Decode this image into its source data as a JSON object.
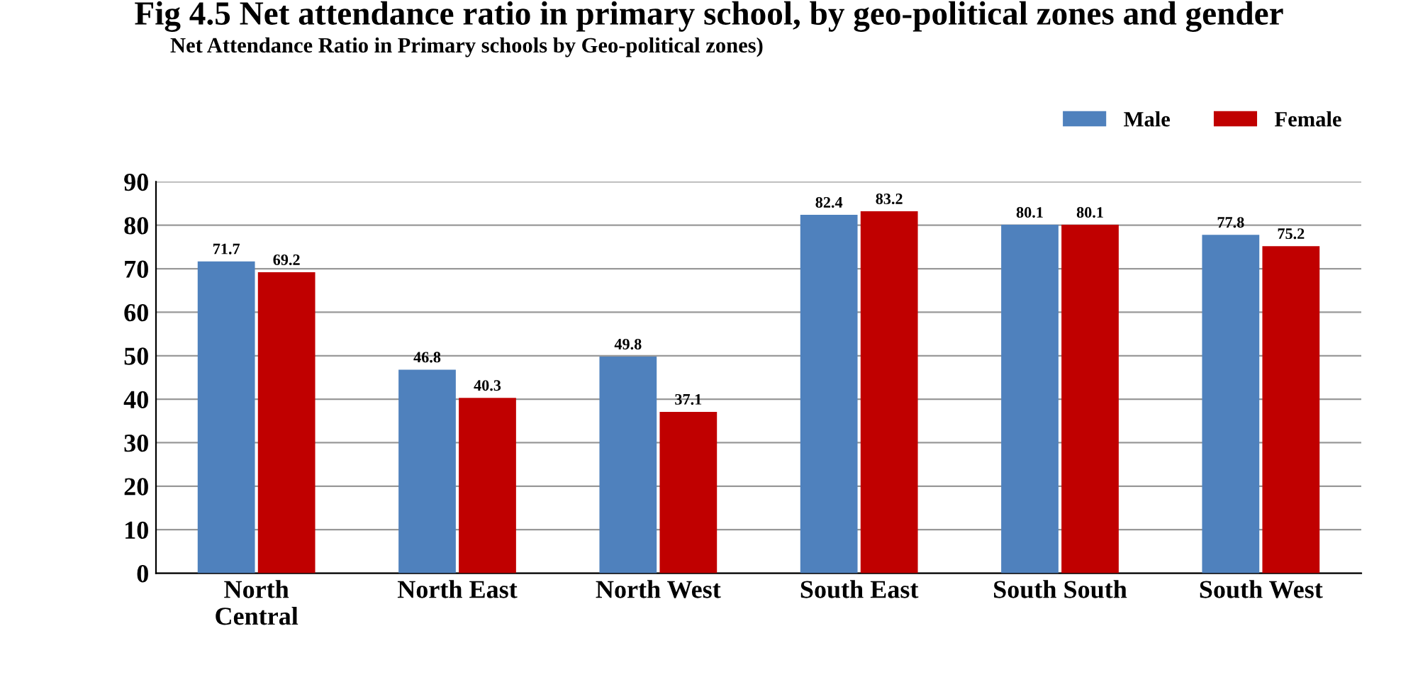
{
  "chart_data": {
    "type": "bar",
    "title": "Fig 4.5 Net attendance ratio in primary school, by geo-political zones and gender",
    "subtitle": "Net Attendance Ratio in Primary schools by Geo-political zones)",
    "categories": [
      "North\nCentral",
      "North East",
      "North West",
      "South East",
      "South South",
      "South West"
    ],
    "series": [
      {
        "name": "Male",
        "color": "#4f81bd",
        "values": [
          71.7,
          46.8,
          49.8,
          82.4,
          80.1,
          77.8
        ]
      },
      {
        "name": "Female",
        "color": "#c00000",
        "values": [
          69.2,
          40.3,
          37.1,
          83.2,
          80.1,
          75.2
        ]
      }
    ],
    "ylim": [
      0,
      90
    ],
    "yticks": [
      0,
      10,
      20,
      30,
      40,
      50,
      60,
      70,
      80,
      90
    ],
    "grid": "y",
    "legend": "top right",
    "data_labels": true
  }
}
